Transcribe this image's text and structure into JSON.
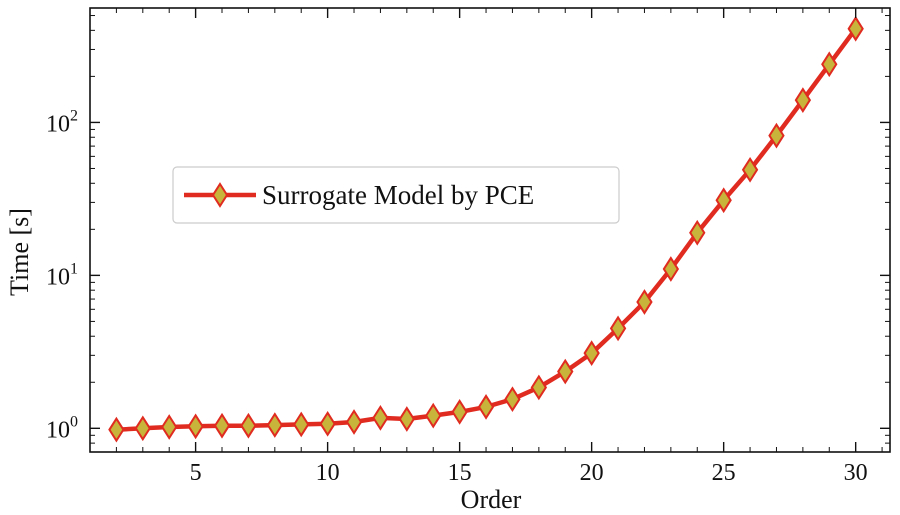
{
  "chart_data": {
    "type": "line",
    "title": "",
    "xlabel": "Order",
    "ylabel": "Time [s]",
    "xscale": "linear",
    "yscale": "log",
    "xlim": [
      1,
      31.3
    ],
    "ylim": [
      0.7,
      560
    ],
    "xticks": [
      5,
      10,
      15,
      20,
      25,
      30
    ],
    "xtick_labels": [
      "5",
      "10",
      "15",
      "20",
      "25",
      "30"
    ],
    "yticks": [
      1,
      10,
      100
    ],
    "ytick_labels": [
      {
        "base": "10",
        "exp": "0"
      },
      {
        "base": "10",
        "exp": "1"
      },
      {
        "base": "10",
        "exp": "2"
      }
    ],
    "legend_position": "center-left",
    "grid": false,
    "series": [
      {
        "name": "Surrogate Model by PCE",
        "line_color": "#e02b20",
        "marker": "diamond",
        "marker_fill": "#c8b43a",
        "marker_edge": "#e02b20",
        "x": [
          2,
          3,
          4,
          5,
          6,
          7,
          8,
          9,
          10,
          11,
          12,
          13,
          14,
          15,
          16,
          17,
          18,
          19,
          20,
          21,
          22,
          23,
          24,
          25,
          26,
          27,
          28,
          29,
          30
        ],
        "values": [
          0.98,
          1.0,
          1.02,
          1.03,
          1.04,
          1.04,
          1.05,
          1.06,
          1.07,
          1.1,
          1.17,
          1.15,
          1.21,
          1.28,
          1.38,
          1.55,
          1.85,
          2.35,
          3.1,
          4.5,
          6.7,
          11,
          19,
          31,
          49,
          82,
          140,
          240,
          410
        ]
      }
    ]
  }
}
